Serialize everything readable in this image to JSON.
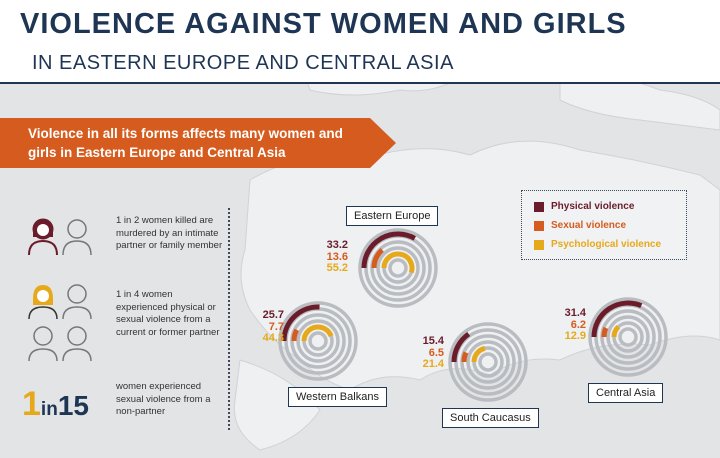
{
  "title": {
    "line1": "VIOLENCE AGAINST WOMEN AND GIRLS",
    "line2": "IN EASTERN EUROPE AND CENTRAL ASIA"
  },
  "banner": {
    "text": "Violence in all its forms affects many women and girls in Eastern Europe and Central Asia"
  },
  "left_stats": {
    "stat1": "1 in 2 women killed are murdered by an intimate partner or family member",
    "stat2": "1 in 4 women experienced physical or sexual violence from a current or former partner",
    "big": {
      "one": "1",
      "in": "in",
      "fifteen": "15"
    },
    "stat3": "women experienced sexual violence from a non-partner"
  },
  "legend": [
    {
      "label": "Physical violence",
      "color": "#6b1c2b"
    },
    {
      "label": "Sexual violence",
      "color": "#d55c1e"
    },
    {
      "label": "Psychological violence",
      "color": "#e7a91c"
    }
  ],
  "icons": {
    "woman_outline": "woman-outline-icon",
    "woman_dark": "woman-dark-icon",
    "woman_yellow": "woman-yellow-icon",
    "map": "map-background"
  },
  "chart_data": {
    "type": "ring",
    "series_names": [
      "Physical violence",
      "Sexual violence",
      "Psychological violence"
    ],
    "colors": [
      "#6b1c2b",
      "#d55c1e",
      "#e7a91c"
    ],
    "regions": [
      {
        "name": "Eastern Europe",
        "values": [
          33.2,
          13.6,
          55.2
        ]
      },
      {
        "name": "Western Balkans",
        "values": [
          25.7,
          7.7,
          44.3
        ]
      },
      {
        "name": "South Caucasus",
        "values": [
          15.4,
          6.5,
          21.4
        ]
      },
      {
        "name": "Central Asia",
        "values": [
          31.4,
          6.2,
          12.9
        ]
      }
    ]
  }
}
